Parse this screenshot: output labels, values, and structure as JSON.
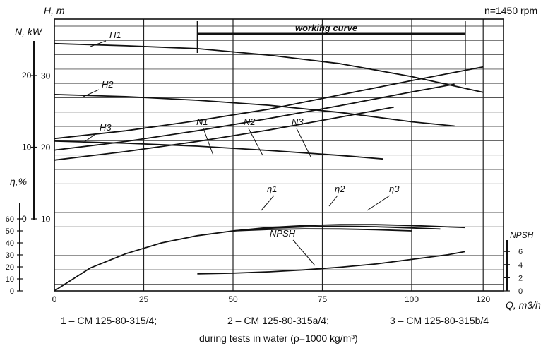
{
  "chart_data": {
    "type": "line",
    "speed_label": "n=1450 rpm",
    "x_axis": {
      "label": "Q, m3/h",
      "ticks": [
        0,
        25,
        50,
        75,
        100,
        120
      ],
      "range": [
        0,
        125
      ]
    },
    "axes": {
      "H": {
        "label": "H, m",
        "ticks": [
          "10",
          "20",
          "30"
        ],
        "range": [
          0,
          40
        ]
      },
      "N": {
        "label": "N, kW",
        "ticks": [
          "0",
          "10",
          "20"
        ],
        "range": [
          0,
          28
        ]
      },
      "eta": {
        "label": "η,%",
        "ticks": [
          "0",
          "10",
          "20",
          "30",
          "40",
          "50",
          "60"
        ],
        "range": [
          0,
          60
        ]
      },
      "npsh": {
        "label": "NPSH",
        "ticks": [
          "0",
          "2",
          "4",
          "6"
        ],
        "range": [
          0,
          8
        ]
      }
    },
    "annotation": "workihg curve",
    "working_range_q": [
      40,
      115
    ],
    "curve_labels": {
      "H1": "H1",
      "H2": "H2",
      "H3": "H3",
      "N1": "N1",
      "N2": "N2",
      "N3": "N3",
      "eta1": "η1",
      "eta2": "η2",
      "eta3": "η3",
      "npsh": "NPSH"
    },
    "series": [
      {
        "name": "H1",
        "axis": "H",
        "x": [
          0,
          20,
          40,
          60,
          80,
          100,
          120
        ],
        "y": [
          34.5,
          34.2,
          33.8,
          32.9,
          31.7,
          29.9,
          27.7
        ]
      },
      {
        "name": "H2",
        "axis": "H",
        "x": [
          0,
          20,
          40,
          60,
          80,
          100,
          112
        ],
        "y": [
          27.4,
          27.1,
          26.6,
          25.9,
          24.9,
          23.6,
          23.0
        ]
      },
      {
        "name": "H3",
        "axis": "H",
        "x": [
          0,
          20,
          40,
          60,
          80,
          92
        ],
        "y": [
          20.9,
          20.6,
          20.2,
          19.6,
          18.9,
          18.4
        ]
      },
      {
        "name": "N1",
        "axis": "N",
        "x": [
          0,
          20,
          40,
          60,
          80,
          100,
          120
        ],
        "y": [
          11.2,
          12.3,
          13.7,
          15.3,
          17.3,
          19.3,
          21.2
        ]
      },
      {
        "name": "N2",
        "axis": "N",
        "x": [
          0,
          20,
          40,
          60,
          80,
          100,
          112
        ],
        "y": [
          9.6,
          10.8,
          12.3,
          14.0,
          15.8,
          17.7,
          18.8
        ]
      },
      {
        "name": "N3",
        "axis": "N",
        "x": [
          0,
          20,
          40,
          60,
          80,
          95
        ],
        "y": [
          8.2,
          9.4,
          10.8,
          12.4,
          14.2,
          15.6
        ]
      },
      {
        "name": "η1",
        "axis": "eta",
        "x": [
          0,
          10,
          20,
          30,
          40,
          50,
          60,
          70,
          80,
          90,
          100,
          115
        ],
        "y": [
          0,
          19,
          31,
          40,
          46,
          50,
          52.8,
          54.4,
          55.2,
          55.2,
          54.5,
          52.8
        ]
      },
      {
        "name": "η2",
        "axis": "eta",
        "x": [
          50,
          60,
          70,
          80,
          90,
          100,
          108
        ],
        "y": [
          50,
          52.2,
          53.4,
          53.8,
          53.5,
          52.5,
          51.5
        ]
      },
      {
        "name": "η3",
        "axis": "eta",
        "x": [
          50,
          60,
          70,
          80,
          90,
          100
        ],
        "y": [
          50,
          51.2,
          51.7,
          51.6,
          51.0,
          50.0
        ]
      },
      {
        "name": "NPSH",
        "axis": "npsh",
        "x": [
          40,
          50,
          60,
          70,
          80,
          90,
          100,
          110,
          115
        ],
        "y": [
          2.6,
          2.7,
          2.9,
          3.2,
          3.6,
          4.1,
          4.8,
          5.5,
          6.0
        ]
      }
    ]
  },
  "footer": {
    "pump1": "1 – CM 125-80-315/4;",
    "pump2": "2 – CM 125-80-315a/4;",
    "pump3": "3 – CM 125-80-315b/4",
    "note": "during tests in water (ρ=1000 kg/m³)"
  }
}
